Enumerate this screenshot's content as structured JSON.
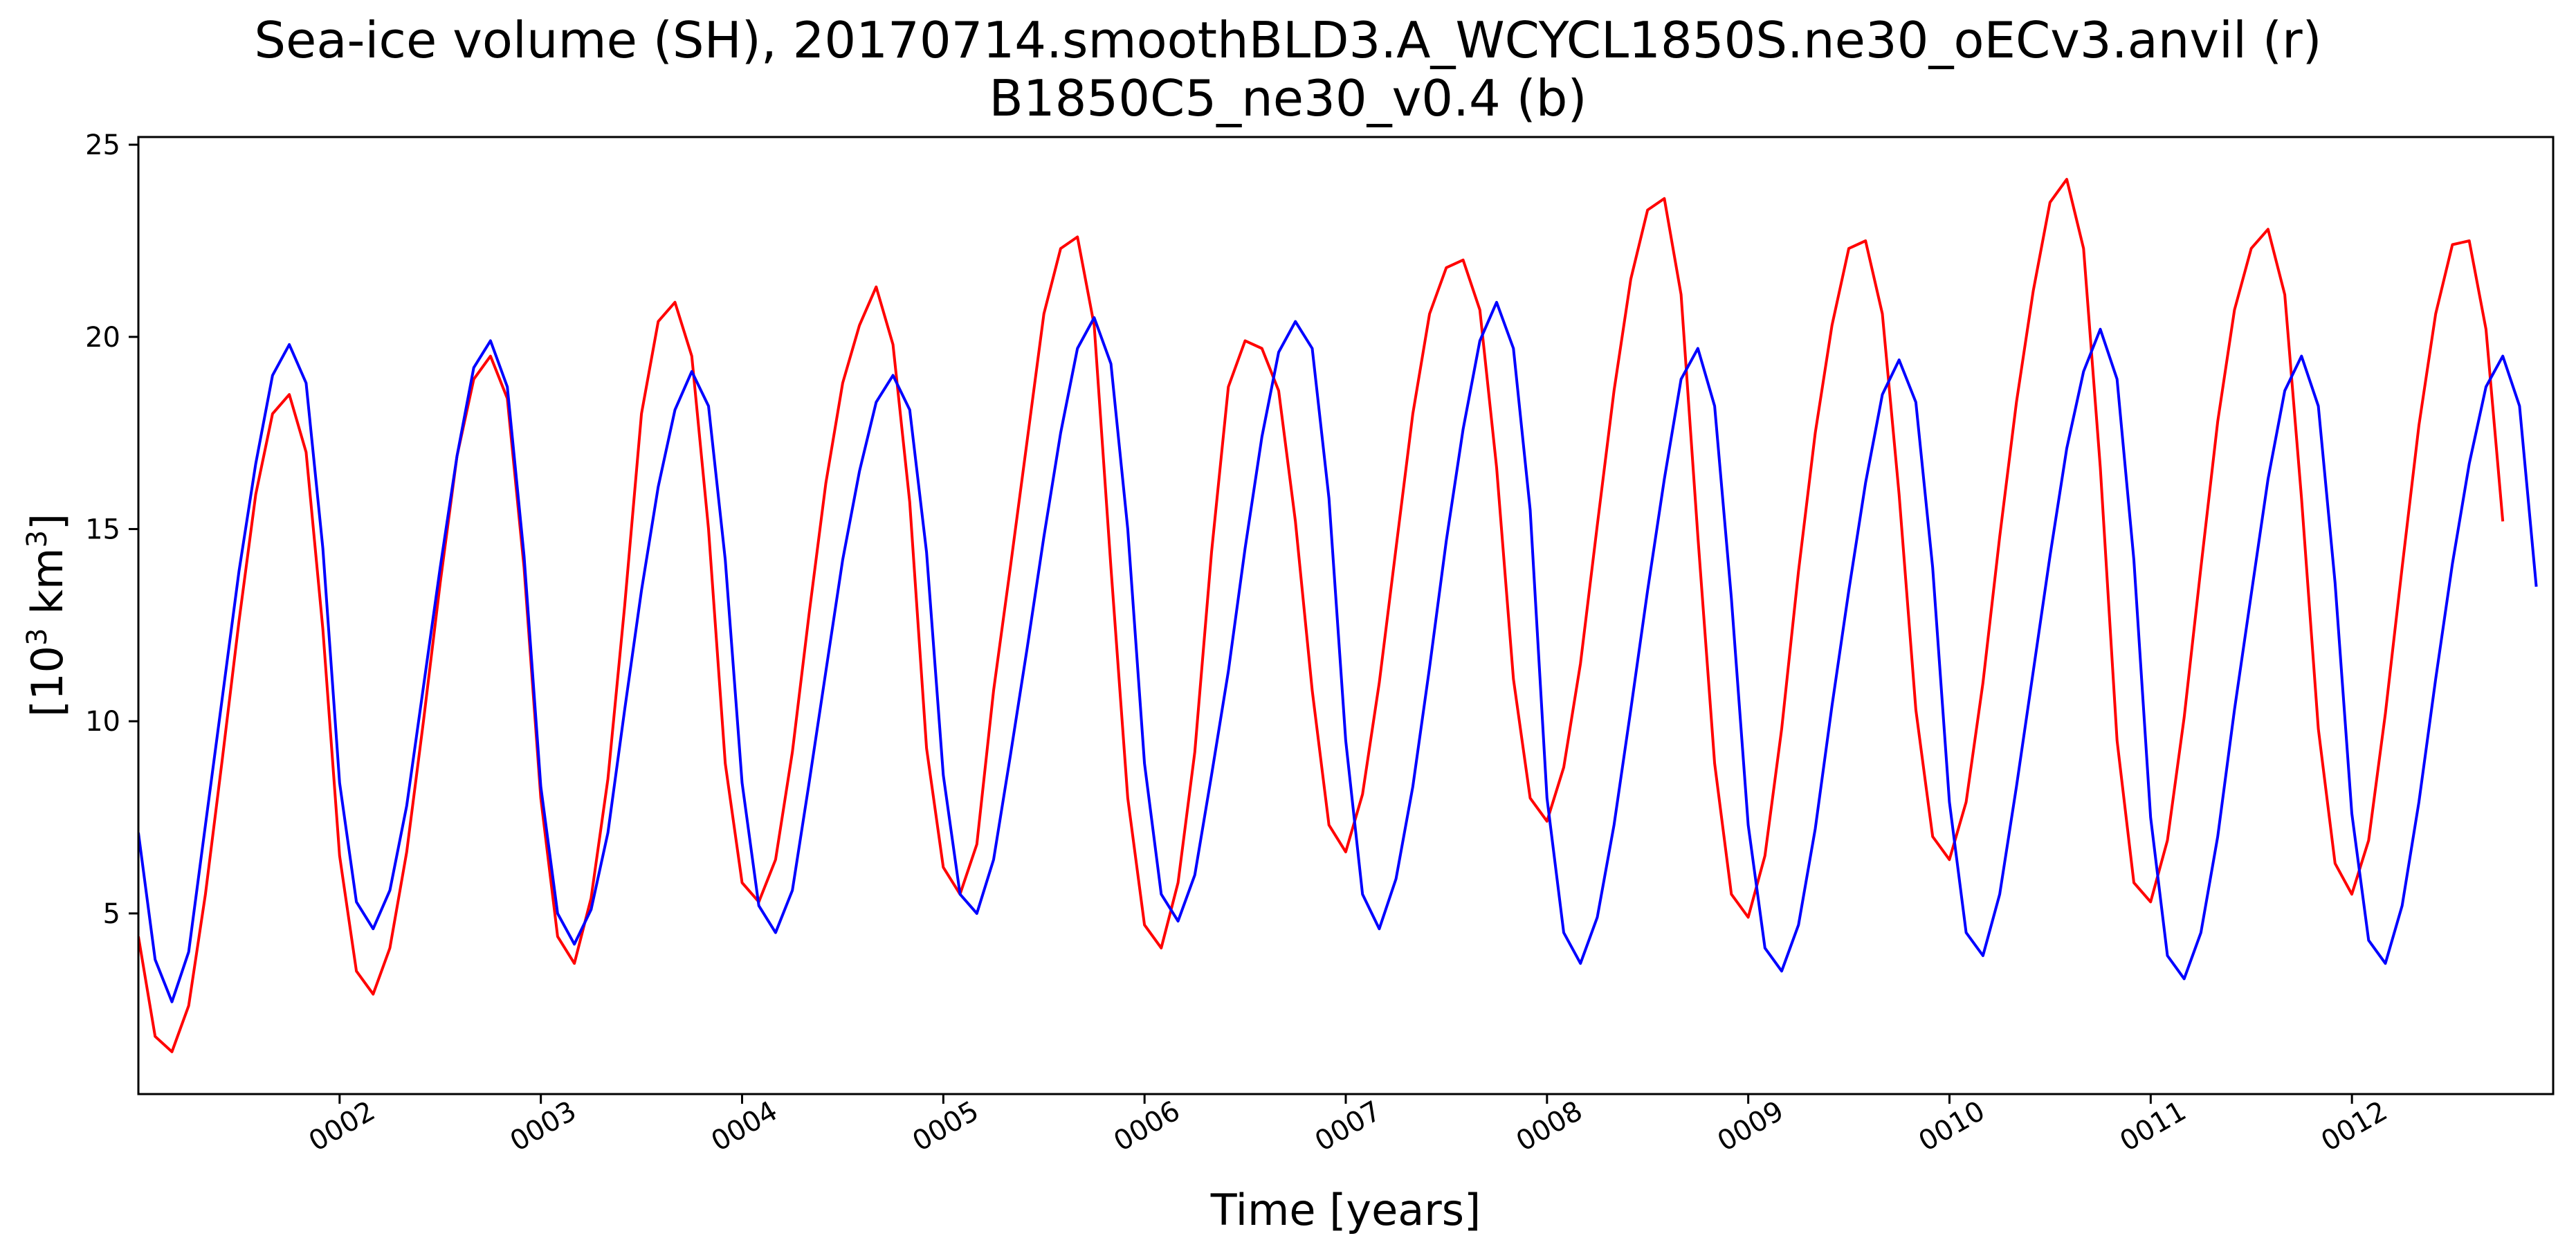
{
  "chart_data": {
    "type": "line",
    "title_line1": "Sea-ice volume (SH), 20170714.smoothBLD3.A_WCYCL1850S.ne30_oECv3.anvil (r)",
    "title_line2": "B1850C5_ne30_v0.4 (b)",
    "xlabel": "Time [years]",
    "ylabel_base": "[10",
    "ylabel_sup1": "3",
    "ylabel_mid": " km",
    "ylabel_sup2": "3",
    "ylabel_end": "]",
    "xlim": [
      1.0,
      13.0
    ],
    "ylim": [
      0.3,
      25.2
    ],
    "x_ticks": [
      {
        "value": 2,
        "label": "0002"
      },
      {
        "value": 3,
        "label": "0003"
      },
      {
        "value": 4,
        "label": "0004"
      },
      {
        "value": 5,
        "label": "0005"
      },
      {
        "value": 6,
        "label": "0006"
      },
      {
        "value": 7,
        "label": "0007"
      },
      {
        "value": 8,
        "label": "0008"
      },
      {
        "value": 9,
        "label": "0009"
      },
      {
        "value": 10,
        "label": "0010"
      },
      {
        "value": 11,
        "label": "0011"
      },
      {
        "value": 12,
        "label": "0012"
      }
    ],
    "y_ticks": [
      {
        "value": 5,
        "label": "5"
      },
      {
        "value": 10,
        "label": "10"
      },
      {
        "value": 15,
        "label": "15"
      },
      {
        "value": 20,
        "label": "20"
      },
      {
        "value": 25,
        "label": "25"
      }
    ],
    "x_start": 1.0,
    "x_step": 0.08333,
    "series": [
      {
        "name": "20170714.smoothBLD3.A_WCYCL1850S.ne30_oECv3.anvil",
        "color": "#ff0000",
        "values": [
          4.4,
          1.8,
          1.4,
          2.6,
          5.5,
          9.0,
          12.6,
          15.9,
          18.0,
          18.5,
          17.0,
          12.4,
          6.5,
          3.5,
          2.9,
          4.1,
          6.6,
          10.0,
          13.6,
          16.9,
          18.9,
          19.5,
          18.4,
          14.0,
          8.0,
          4.4,
          3.7,
          5.4,
          8.5,
          13.0,
          18.0,
          20.4,
          20.9,
          19.5,
          15.0,
          8.9,
          5.8,
          5.3,
          6.4,
          9.2,
          12.8,
          16.2,
          18.8,
          20.3,
          21.3,
          19.8,
          15.7,
          9.3,
          6.2,
          5.5,
          6.8,
          10.8,
          14.0,
          17.3,
          20.6,
          22.3,
          22.6,
          20.3,
          14.0,
          8.0,
          4.7,
          4.1,
          5.8,
          9.2,
          14.4,
          18.7,
          19.9,
          19.7,
          18.6,
          15.2,
          10.8,
          7.3,
          6.6,
          8.1,
          11.0,
          14.5,
          18.0,
          20.6,
          21.8,
          22.0,
          20.7,
          16.6,
          11.1,
          8.0,
          7.4,
          8.8,
          11.5,
          15.1,
          18.6,
          21.5,
          23.3,
          23.6,
          21.1,
          14.8,
          8.9,
          5.5,
          4.9,
          6.5,
          9.8,
          13.9,
          17.5,
          20.3,
          22.3,
          22.5,
          20.6,
          15.9,
          10.3,
          7.0,
          6.4,
          7.9,
          11.0,
          14.8,
          18.3,
          21.2,
          23.5,
          24.1,
          22.3,
          16.6,
          9.5,
          5.8,
          5.3,
          6.9,
          10.1,
          14.0,
          17.8,
          20.7,
          22.3,
          22.8,
          21.1,
          15.8,
          9.8,
          6.3,
          5.5,
          6.9,
          10.2,
          14.0,
          17.7,
          20.6,
          22.4,
          22.5,
          20.2,
          15.2
        ]
      },
      {
        "name": "B1850C5_ne30_v0.4",
        "color": "#0000ff",
        "values": [
          7.1,
          3.8,
          2.7,
          4.0,
          7.3,
          10.6,
          13.9,
          16.7,
          19.0,
          19.8,
          18.8,
          14.5,
          8.4,
          5.3,
          4.6,
          5.6,
          7.8,
          10.9,
          14.0,
          16.9,
          19.2,
          19.9,
          18.7,
          14.3,
          8.3,
          5.0,
          4.2,
          5.1,
          7.1,
          10.3,
          13.4,
          16.1,
          18.1,
          19.1,
          18.2,
          14.2,
          8.4,
          5.2,
          4.5,
          5.6,
          8.4,
          11.3,
          14.2,
          16.5,
          18.3,
          19.0,
          18.1,
          14.4,
          8.6,
          5.5,
          5.0,
          6.4,
          9.1,
          11.9,
          14.8,
          17.5,
          19.7,
          20.5,
          19.3,
          15.0,
          8.9,
          5.5,
          4.8,
          6.0,
          8.6,
          11.3,
          14.5,
          17.4,
          19.6,
          20.4,
          19.7,
          15.8,
          9.5,
          5.5,
          4.6,
          5.9,
          8.3,
          11.4,
          14.7,
          17.6,
          19.9,
          20.9,
          19.7,
          15.5,
          8.0,
          4.5,
          3.7,
          4.9,
          7.3,
          10.3,
          13.4,
          16.3,
          18.9,
          19.7,
          18.2,
          13.2,
          7.3,
          4.1,
          3.5,
          4.7,
          7.2,
          10.4,
          13.4,
          16.2,
          18.5,
          19.4,
          18.3,
          14.0,
          7.9,
          4.5,
          3.9,
          5.5,
          8.3,
          11.3,
          14.3,
          17.1,
          19.1,
          20.2,
          18.9,
          14.2,
          7.5,
          3.9,
          3.3,
          4.5,
          7.0,
          10.3,
          13.3,
          16.3,
          18.6,
          19.5,
          18.2,
          13.6,
          7.6,
          4.3,
          3.7,
          5.2,
          7.9,
          11.1,
          14.1,
          16.7,
          18.7,
          19.5,
          18.2,
          13.5
        ]
      }
    ]
  }
}
